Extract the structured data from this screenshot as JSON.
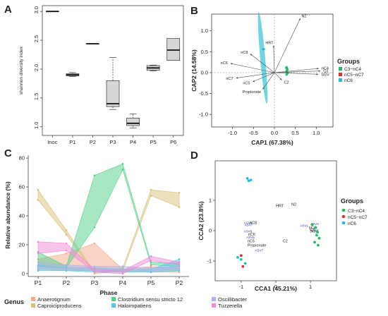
{
  "colors": {
    "C3-nC4": "#22bb66",
    "nC5-nC7": "#e03030",
    "nC6": "#20c0d0",
    "Anaerotignum": "#f4a98a",
    "Caproiciproducens": "#d8c07a",
    "Clostridium sensu stricto 12": "#4fd08a",
    "Haloimpatiens": "#56c8e8",
    "Oscillibacter": "#a9b4ee",
    "Tuzzerella": "#f28ad8"
  },
  "panel_letters": [
    "A",
    "B",
    "C",
    "D"
  ],
  "chart_data": [
    {
      "type": "boxplot",
      "panel": "A",
      "title": "",
      "xlabel": "",
      "ylabel": "shannon diversity index",
      "ylim": [
        0.85,
        3.1
      ],
      "yticks": [
        "1.0",
        "1.5",
        "2.0",
        "2.5",
        "3.0"
      ],
      "categories": [
        "Inoc",
        "P1",
        "P2",
        "P3",
        "P4",
        "P5",
        "P6"
      ],
      "boxes": [
        {
          "min": 3.0,
          "q1": 3.0,
          "median": 3.0,
          "q3": 3.0,
          "max": 3.0
        },
        {
          "min": 1.87,
          "q1": 1.88,
          "median": 1.9,
          "q3": 1.92,
          "max": 1.94
        },
        {
          "min": 2.44,
          "q1": 2.44,
          "median": 2.44,
          "q3": 2.44,
          "max": 2.44
        },
        {
          "min": 1.3,
          "q1": 1.35,
          "median": 1.4,
          "q3": 1.8,
          "max": 2.2
        },
        {
          "min": 0.98,
          "q1": 1.02,
          "median": 1.06,
          "q3": 1.15,
          "max": 1.22
        },
        {
          "min": 1.97,
          "q1": 1.98,
          "median": 2.02,
          "q3": 2.06,
          "max": 2.07
        },
        {
          "min": 2.15,
          "q1": 2.15,
          "median": 2.33,
          "q3": 2.53,
          "max": 2.53
        }
      ]
    },
    {
      "type": "ordination",
      "panel": "B",
      "title": "",
      "xlabel": "CAP1 (67.38%)",
      "ylabel": "CAP2 (14.58%)",
      "xlim": [
        -1.5,
        1.4
      ],
      "ylim": [
        -1.3,
        1.4
      ],
      "xticks": [
        "-1.0",
        "-0.5",
        "0.0",
        "0.5",
        "1.0"
      ],
      "yticks": [
        "-1.0",
        "-0.5",
        "0.0",
        "0.5",
        "1.0"
      ],
      "vectors": [
        {
          "label": "N2⁻⁻",
          "x": 0.62,
          "y": 1.3
        },
        {
          "label": "HRT",
          "x": -0.02,
          "y": 0.65
        },
        {
          "label": "nC8",
          "x": -0.58,
          "y": 0.45
        },
        {
          "label": "nC6",
          "x": -1.05,
          "y": 0.22
        },
        {
          "label": "nC7",
          "x": -0.92,
          "y": -0.13
        },
        {
          "label": "nC5",
          "x": -0.52,
          "y": -0.22
        },
        {
          "label": "Propionate",
          "x": -0.28,
          "y": -0.4
        },
        {
          "label": "C2",
          "x": 0.18,
          "y": -0.18
        },
        {
          "label": "nC4",
          "x": 1.06,
          "y": 0.1
        },
        {
          "label": "C3",
          "x": 1.1,
          "y": 0.04
        },
        {
          "label": "SGV",
          "x": 1.05,
          "y": -0.04
        }
      ],
      "ellipses": [
        {
          "group": "nC6",
          "cx": -0.28,
          "cy": 0.35,
          "rx": 0.06,
          "ry": 1.1,
          "angle": -5
        },
        {
          "group": "C3-nC4",
          "cx": 0.3,
          "cy": 0.05,
          "rx": 0.03,
          "ry": 0.12,
          "angle": 0
        }
      ],
      "points": [
        {
          "group": "nC6",
          "x": -0.27,
          "y": 0.56
        },
        {
          "group": "nC6",
          "x": -0.25,
          "y": 0.56
        },
        {
          "group": "C3-nC4",
          "x": 0.28,
          "y": 0.12
        },
        {
          "group": "C3-nC4",
          "x": 0.3,
          "y": 0.1
        },
        {
          "group": "C3-nC4",
          "x": 0.31,
          "y": 0.07
        },
        {
          "group": "C3-nC4",
          "x": 0.29,
          "y": 0.04
        },
        {
          "group": "C3-nC4",
          "x": 0.3,
          "y": 0.01
        },
        {
          "group": "C3-nC4",
          "x": 0.31,
          "y": -0.02
        },
        {
          "group": "C3-nC4",
          "x": 0.29,
          "y": -0.05
        }
      ],
      "legend": {
        "title": "Groups",
        "entries": [
          "C3−nC4",
          "nC5−nC7",
          "nC6"
        ]
      }
    },
    {
      "type": "area",
      "panel": "C",
      "title": "",
      "xlabel": "Phase",
      "ylabel": "Relative abundance (%)",
      "ylim": [
        -2,
        82
      ],
      "yticks": [
        "0",
        "20",
        "40",
        "60",
        "80"
      ],
      "categories": [
        "P1",
        "P2",
        "P3",
        "P4",
        "P5",
        "P2"
      ],
      "series": [
        {
          "name": "Anaerotignum",
          "upper": [
            10,
            14,
            21,
            3,
            5,
            4
          ],
          "lower": [
            3,
            2,
            2,
            1,
            1,
            1
          ]
        },
        {
          "name": "Caproiciproducens",
          "upper": [
            58,
            30,
            1,
            4,
            58,
            56
          ],
          "lower": [
            51,
            27,
            0,
            2,
            54,
            46
          ]
        },
        {
          "name": "Clostridium sensu stricto 12",
          "upper": [
            15,
            5,
            68,
            76,
            8,
            7
          ],
          "lower": [
            5,
            4,
            32,
            72,
            6,
            5
          ]
        },
        {
          "name": "Haloimpatiens",
          "upper": [
            6,
            4,
            4,
            3,
            3,
            10
          ],
          "lower": [
            2,
            2,
            1,
            1,
            1,
            2
          ]
        },
        {
          "name": "Oscillibacter",
          "upper": [
            8,
            6,
            5,
            5,
            4,
            5
          ],
          "lower": [
            4,
            3,
            2,
            2,
            2,
            3
          ]
        },
        {
          "name": "Tuzzerella",
          "upper": [
            22,
            21,
            3,
            2,
            12,
            8
          ],
          "lower": [
            14,
            16,
            1,
            0,
            9,
            6
          ]
        }
      ],
      "legend": {
        "title": "Genus",
        "entries": [
          "Anaerotignum",
          "Caproiciproducens",
          "Clostridium sensu stricto 12",
          "Haloimpatiens",
          "Oscillibacter",
          "Tuzzerella"
        ]
      }
    },
    {
      "type": "scatter",
      "panel": "D",
      "title": "",
      "xlabel": "CCA1 (45.21%)",
      "ylabel": "CCA2 (23.8%)",
      "xlim": [
        -1.75,
        1.75
      ],
      "ylim": [
        -1.65,
        2.3
      ],
      "xticks": [
        "-1",
        "0",
        "1"
      ],
      "yticks": [
        "-1",
        "0",
        "1"
      ],
      "env_labels": [
        {
          "label": "HRT",
          "x": 0.0,
          "y": 0.78
        },
        {
          "label": "N2",
          "x": 0.45,
          "y": 0.82
        },
        {
          "label": "nC8",
          "x": -0.75,
          "y": 0.22
        },
        {
          "label": "nC6",
          "x": -0.8,
          "y": -0.16
        },
        {
          "label": "nC5",
          "x": -0.82,
          "y": -0.38
        },
        {
          "label": "Propionate",
          "x": -0.82,
          "y": -0.52
        },
        {
          "label": "C2",
          "x": 0.2,
          "y": -0.38
        },
        {
          "label": "nC4",
          "x": 0.95,
          "y": 0.06
        },
        {
          "label": "C3",
          "x": 0.98,
          "y": 0.0
        },
        {
          "label": "SGV",
          "x": 0.98,
          "y": -0.06
        }
      ],
      "asv_labels": [
        {
          "label": "ASV8",
          "x": -0.92,
          "y": 0.22
        },
        {
          "label": "ASV7",
          "x": -0.9,
          "y": 0.15
        },
        {
          "label": "ASV6",
          "x": -0.92,
          "y": -0.06
        },
        {
          "label": "ASV5",
          "x": -0.85,
          "y": -0.26
        },
        {
          "label": "ASV7",
          "x": -0.6,
          "y": -0.68
        },
        {
          "label": "ASV1",
          "x": 0.7,
          "y": 0.13
        },
        {
          "label": "ASV3",
          "x": 1.0,
          "y": 0.18
        },
        {
          "label": "ASV4",
          "x": 1.0,
          "y": -0.04
        }
      ],
      "points": [
        {
          "group": "nC6",
          "x": -0.82,
          "y": 1.72
        },
        {
          "group": "nC6",
          "x": -0.78,
          "y": 1.64
        },
        {
          "group": "nC6",
          "x": -0.72,
          "y": 1.67
        },
        {
          "group": "nC6",
          "x": -1.1,
          "y": -0.88
        },
        {
          "group": "nC6",
          "x": -1.0,
          "y": -0.95
        },
        {
          "group": "nC6",
          "x": -0.88,
          "y": -1.08
        },
        {
          "group": "nC5-nC7",
          "x": -1.0,
          "y": -0.82
        },
        {
          "group": "nC5-nC7",
          "x": -0.95,
          "y": -1.18
        },
        {
          "group": "C3-nC4",
          "x": 1.05,
          "y": 0.2
        },
        {
          "group": "C3-nC4",
          "x": 1.15,
          "y": 0.1
        },
        {
          "group": "C3-nC4",
          "x": 1.2,
          "y": -0.05
        },
        {
          "group": "C3-nC4",
          "x": 1.18,
          "y": -0.15
        },
        {
          "group": "C3-nC4",
          "x": 1.25,
          "y": -0.25
        },
        {
          "group": "C3-nC4",
          "x": 1.12,
          "y": -0.38
        },
        {
          "group": "C3-nC4",
          "x": 1.22,
          "y": -0.48
        }
      ],
      "legend": {
        "title": "Groups",
        "entries": [
          "C3−nC4",
          "nC5−nC7",
          "nC6"
        ]
      }
    }
  ]
}
